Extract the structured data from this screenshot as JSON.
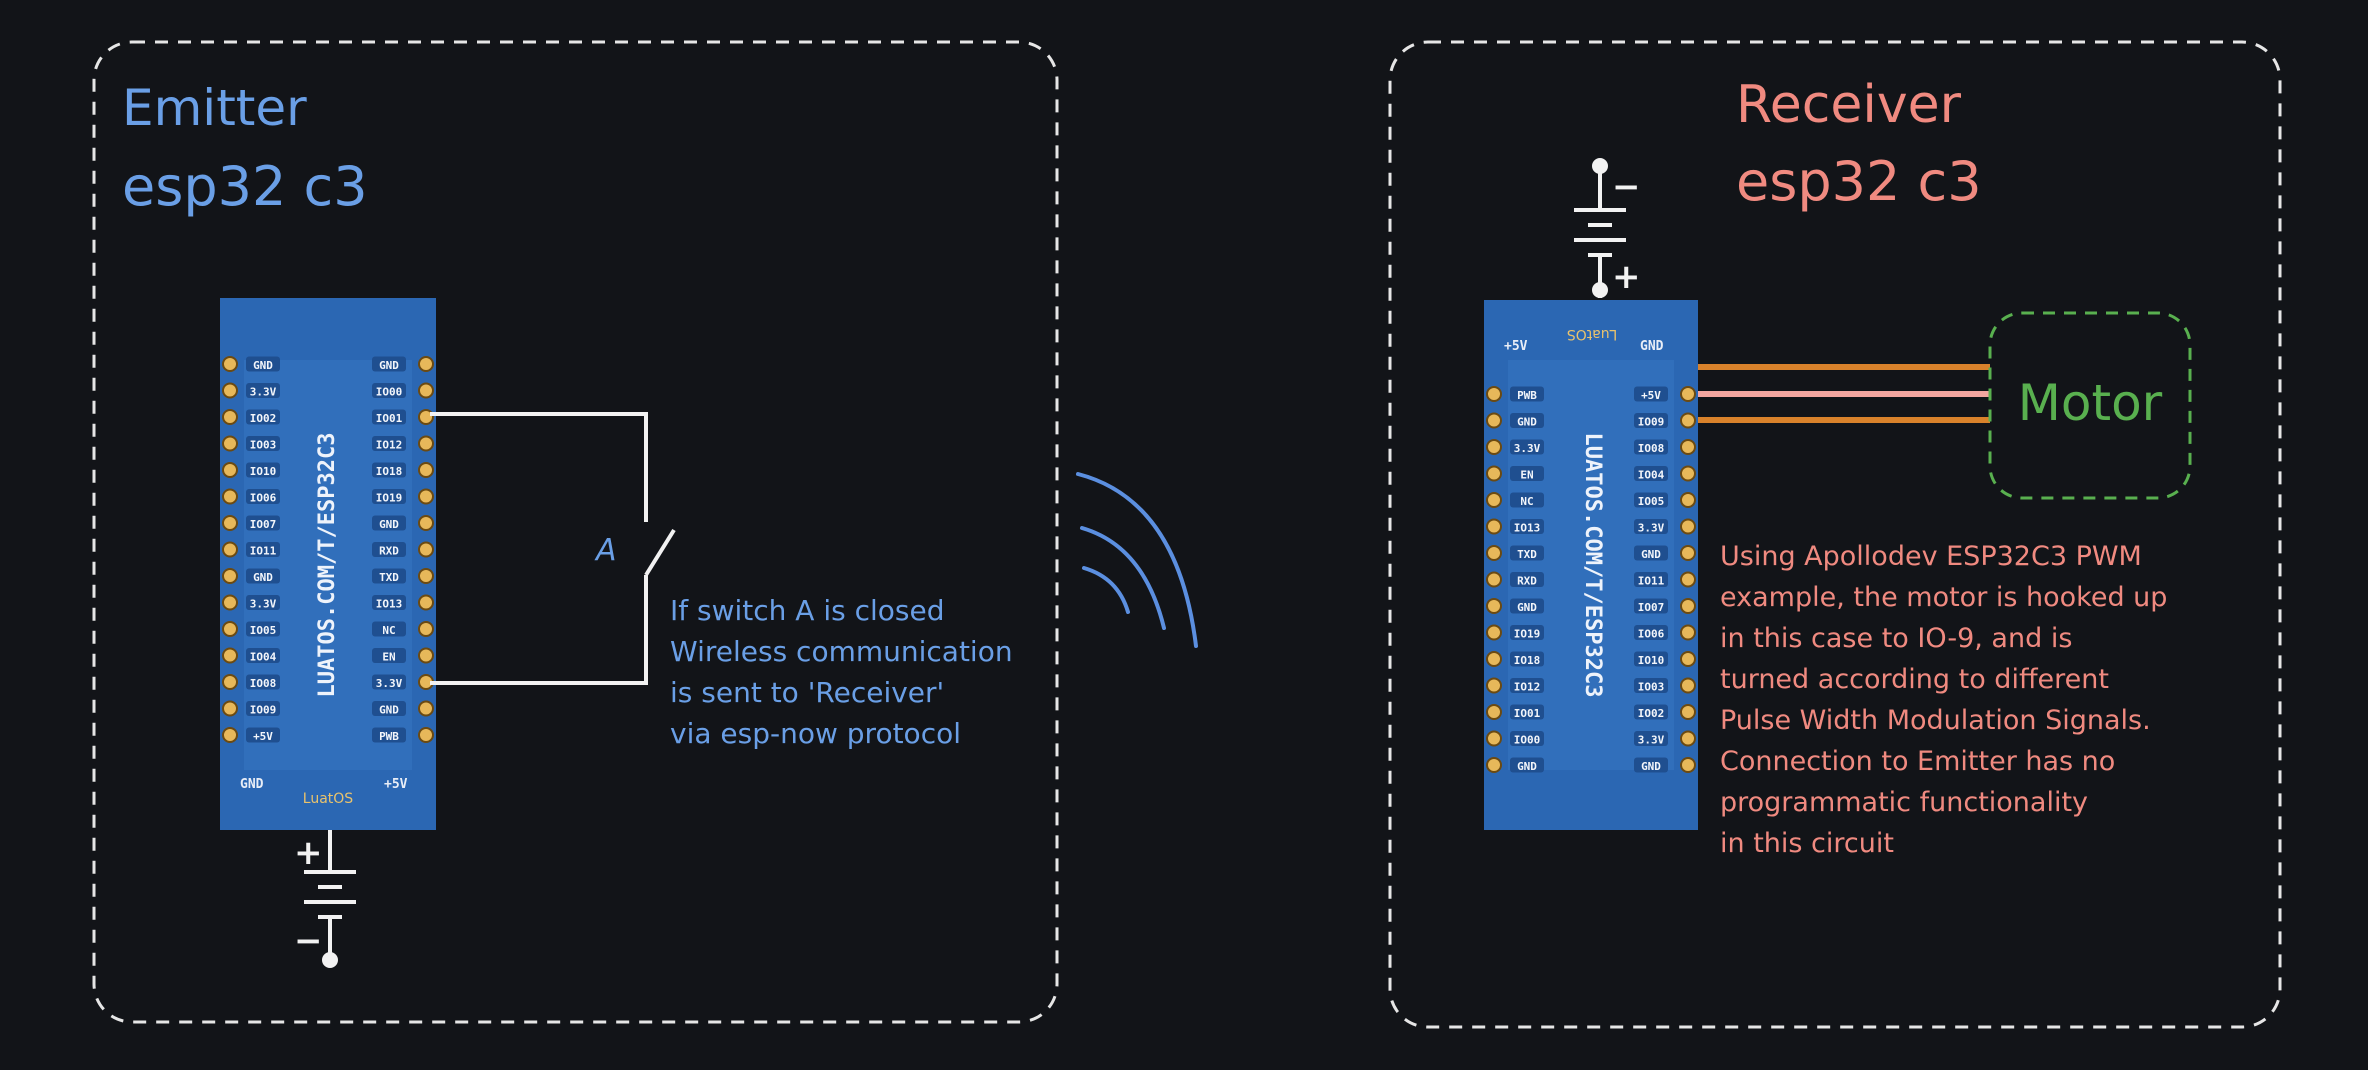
{
  "colors": {
    "background": "#121418",
    "emitter_blue": "#6a9fe6",
    "receiver_red": "#f08a80",
    "motor_green": "#59b04f",
    "wire_white": "#f2f2f2",
    "wire_orange": "#d9822b",
    "wire_pink": "#f3a6a0",
    "board_blue": "#2b67b3"
  },
  "emitter": {
    "title_line1": "Emitter",
    "title_line2": "esp32 c3",
    "switch_label": "A",
    "note_lines": [
      "If switch A is closed",
      "Wireless communication",
      "is sent to 'Receiver'",
      "via esp-now protocol"
    ],
    "board": {
      "silk_text": "LUATOS.COM/T/ESP32C3",
      "brand": "LuatOS",
      "left_pins": [
        "GND",
        "3.3V",
        "IO02",
        "IO03",
        "IO10",
        "IO06",
        "IO07",
        "IO11",
        "GND",
        "3.3V",
        "IO05",
        "IO04",
        "IO08",
        "IO09",
        "+5V"
      ],
      "right_pins": [
        "GND",
        "IO00",
        "IO01",
        "IO12",
        "IO18",
        "IO19",
        "GND",
        "RXD",
        "TXD",
        "IO13",
        "NC",
        "EN",
        "3.3V",
        "GND",
        "PWB"
      ],
      "bottom_left": "GND",
      "bottom_right": "+5V"
    },
    "battery_plus": "+",
    "battery_minus": "−"
  },
  "receiver": {
    "title_line1": "Receiver",
    "title_line2": "esp32 c3",
    "motor_label": "Motor",
    "note_lines": [
      "Using Apollodev ESP32C3 PWM",
      "example, the motor is hooked up",
      "in this case to IO-9, and is",
      "turned according to different",
      "Pulse Width Modulation Signals.",
      "Connection to Emitter has no",
      "programmatic functionality",
      "in this circuit"
    ],
    "board": {
      "silk_text": "LUATOS.COM/T/ESP32C3",
      "brand": "LuatOS",
      "top_left": "+5V",
      "top_right": "GND",
      "left_pins": [
        "PWB",
        "GND",
        "3.3V",
        "EN",
        "NC",
        "IO13",
        "TXD",
        "RXD",
        "GND",
        "IO19",
        "IO18",
        "IO12",
        "IO01",
        "IO00",
        "GND"
      ],
      "right_pins": [
        "+5V",
        "IO09",
        "IO08",
        "IO04",
        "IO05",
        "3.3V",
        "GND",
        "IO11",
        "IO07",
        "IO06",
        "IO10",
        "IO03",
        "IO02",
        "3.3V",
        "GND"
      ]
    },
    "battery_plus": "+",
    "battery_minus": "−"
  }
}
